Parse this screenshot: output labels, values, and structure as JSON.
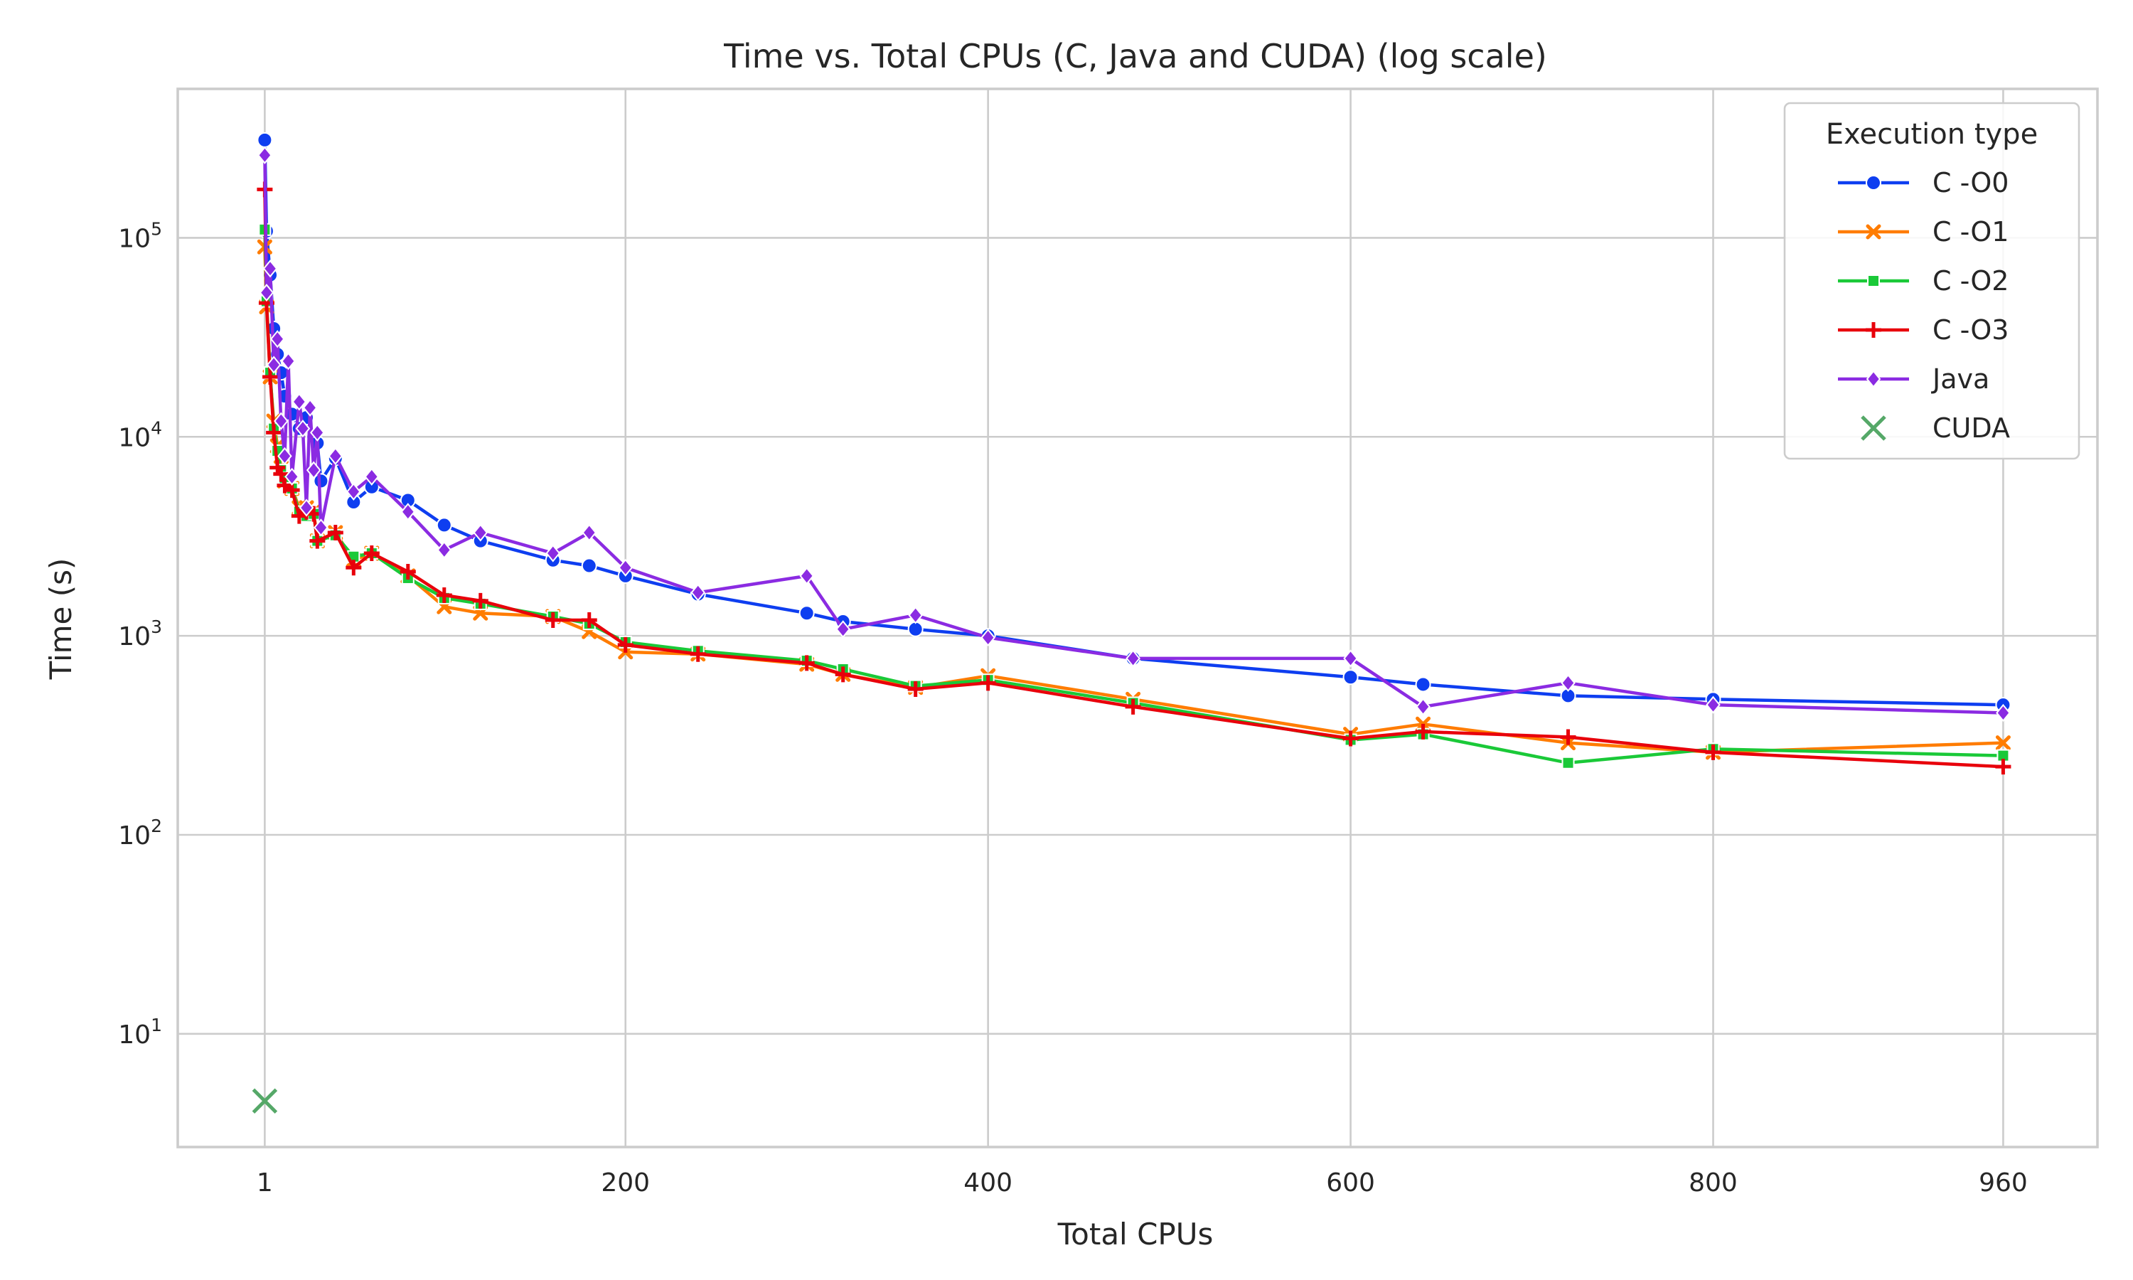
{
  "chart_data": {
    "type": "line",
    "title": "Time vs. Total CPUs (C, Java and CUDA) (log scale)",
    "xlabel": "Total CPUs",
    "ylabel": "Time (s)",
    "x_ticks": [
      1,
      200,
      400,
      600,
      800,
      960
    ],
    "x_tick_labels": [
      "1",
      "200",
      "400",
      "600",
      "800",
      "960"
    ],
    "y_scale": "log",
    "y_ticks": [
      10,
      100,
      1000,
      10000,
      100000
    ],
    "y_tick_labels": [
      {
        "base": "10",
        "exp": "1"
      },
      {
        "base": "10",
        "exp": "2"
      },
      {
        "base": "10",
        "exp": "3"
      },
      {
        "base": "10",
        "exp": "4"
      },
      {
        "base": "10",
        "exp": "5"
      }
    ],
    "xlim": [
      -47,
      1012
    ],
    "ylim": [
      2.7,
      560000
    ],
    "grid": true,
    "legend": {
      "title": "Execution type",
      "placement": "top-right"
    },
    "series": [
      {
        "name": "C -O0",
        "color": "#0e3ef0",
        "marker": "circle",
        "points": [
          [
            1,
            310000
          ],
          [
            2,
            108000
          ],
          [
            4,
            65000
          ],
          [
            6,
            35000
          ],
          [
            8,
            26000
          ],
          [
            10,
            21000
          ],
          [
            12,
            16000
          ],
          [
            16,
            13000
          ],
          [
            20,
            11000
          ],
          [
            24,
            12500
          ],
          [
            28,
            10000
          ],
          [
            30,
            9300
          ],
          [
            32,
            6000
          ],
          [
            40,
            7800
          ],
          [
            50,
            4700
          ],
          [
            60,
            5600
          ],
          [
            80,
            4800
          ],
          [
            100,
            3600
          ],
          [
            120,
            3000
          ],
          [
            160,
            2400
          ],
          [
            180,
            2250
          ],
          [
            200,
            2000
          ],
          [
            240,
            1620
          ],
          [
            300,
            1300
          ],
          [
            320,
            1180
          ],
          [
            360,
            1080
          ],
          [
            400,
            1000
          ],
          [
            480,
            770
          ],
          [
            600,
            620
          ],
          [
            640,
            570
          ],
          [
            720,
            500
          ],
          [
            800,
            480
          ],
          [
            960,
            450
          ]
        ]
      },
      {
        "name": "C -O1",
        "color": "#ff7c00",
        "marker": "x",
        "points": [
          [
            1,
            90000
          ],
          [
            2,
            45000
          ],
          [
            4,
            20000
          ],
          [
            6,
            12000
          ],
          [
            8,
            9000
          ],
          [
            10,
            7000
          ],
          [
            12,
            6000
          ],
          [
            16,
            5500
          ],
          [
            20,
            4400
          ],
          [
            24,
            4400
          ],
          [
            28,
            4200
          ],
          [
            30,
            3000
          ],
          [
            40,
            3300
          ],
          [
            50,
            2400
          ],
          [
            60,
            2600
          ],
          [
            80,
            2000
          ],
          [
            100,
            1400
          ],
          [
            120,
            1300
          ],
          [
            160,
            1250
          ],
          [
            180,
            1050
          ],
          [
            200,
            830
          ],
          [
            240,
            810
          ],
          [
            300,
            720
          ],
          [
            320,
            640
          ],
          [
            360,
            550
          ],
          [
            400,
            630
          ],
          [
            480,
            480
          ],
          [
            600,
            320
          ],
          [
            640,
            360
          ],
          [
            720,
            290
          ],
          [
            800,
            260
          ],
          [
            960,
            290
          ]
        ]
      },
      {
        "name": "C -O2",
        "color": "#1ac938",
        "marker": "square",
        "points": [
          [
            1,
            110000
          ],
          [
            2,
            48000
          ],
          [
            4,
            21000
          ],
          [
            6,
            11000
          ],
          [
            8,
            8500
          ],
          [
            10,
            6800
          ],
          [
            12,
            6200
          ],
          [
            16,
            5500
          ],
          [
            20,
            4200
          ],
          [
            24,
            4000
          ],
          [
            28,
            4100
          ],
          [
            30,
            3000
          ],
          [
            40,
            3200
          ],
          [
            50,
            2500
          ],
          [
            60,
            2600
          ],
          [
            80,
            1950
          ],
          [
            100,
            1550
          ],
          [
            120,
            1450
          ],
          [
            160,
            1250
          ],
          [
            180,
            1150
          ],
          [
            200,
            930
          ],
          [
            240,
            840
          ],
          [
            300,
            750
          ],
          [
            320,
            680
          ],
          [
            360,
            560
          ],
          [
            400,
            600
          ],
          [
            480,
            460
          ],
          [
            600,
            300
          ],
          [
            640,
            320
          ],
          [
            720,
            230
          ],
          [
            800,
            270
          ],
          [
            960,
            250
          ]
        ]
      },
      {
        "name": "C -O3",
        "color": "#e8000b",
        "marker": "plus",
        "points": [
          [
            1,
            175000
          ],
          [
            2,
            47000
          ],
          [
            4,
            20000
          ],
          [
            6,
            10500
          ],
          [
            8,
            7000
          ],
          [
            10,
            6500
          ],
          [
            12,
            5700
          ],
          [
            16,
            5400
          ],
          [
            20,
            4000
          ],
          [
            24,
            4200
          ],
          [
            28,
            4100
          ],
          [
            30,
            3000
          ],
          [
            40,
            3300
          ],
          [
            50,
            2200
          ],
          [
            60,
            2600
          ],
          [
            80,
            2100
          ],
          [
            100,
            1600
          ],
          [
            120,
            1500
          ],
          [
            160,
            1200
          ],
          [
            180,
            1200
          ],
          [
            200,
            900
          ],
          [
            240,
            810
          ],
          [
            300,
            730
          ],
          [
            320,
            640
          ],
          [
            360,
            540
          ],
          [
            400,
            580
          ],
          [
            480,
            440
          ],
          [
            600,
            305
          ],
          [
            640,
            330
          ],
          [
            720,
            310
          ],
          [
            800,
            260
          ],
          [
            960,
            220
          ]
        ]
      },
      {
        "name": "Java",
        "color": "#8b2be2",
        "marker": "diamond",
        "points": [
          [
            1,
            260000
          ],
          [
            2,
            53000
          ],
          [
            4,
            70000
          ],
          [
            6,
            23000
          ],
          [
            8,
            31000
          ],
          [
            10,
            12000
          ],
          [
            12,
            8000
          ],
          [
            14,
            24000
          ],
          [
            16,
            6300
          ],
          [
            20,
            15000
          ],
          [
            22,
            11000
          ],
          [
            24,
            4400
          ],
          [
            26,
            14000
          ],
          [
            28,
            6800
          ],
          [
            30,
            10500
          ],
          [
            32,
            3500
          ],
          [
            40,
            8000
          ],
          [
            50,
            5300
          ],
          [
            60,
            6300
          ],
          [
            80,
            4200
          ],
          [
            100,
            2700
          ],
          [
            120,
            3300
          ],
          [
            160,
            2600
          ],
          [
            180,
            3300
          ],
          [
            200,
            2200
          ],
          [
            240,
            1650
          ],
          [
            300,
            2000
          ],
          [
            320,
            1080
          ],
          [
            360,
            1270
          ],
          [
            400,
            980
          ],
          [
            480,
            770
          ],
          [
            600,
            770
          ],
          [
            640,
            440
          ],
          [
            720,
            580
          ],
          [
            800,
            450
          ],
          [
            960,
            410
          ]
        ]
      },
      {
        "name": "CUDA",
        "color": "#55a868",
        "marker": "bigx",
        "line": false,
        "points": [
          [
            1,
            4.6
          ]
        ]
      }
    ]
  }
}
